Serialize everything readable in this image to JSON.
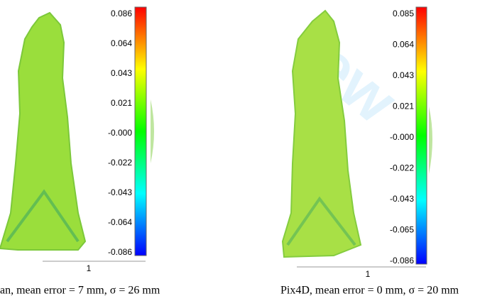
{
  "watermark": "iew",
  "panels": [
    {
      "colorbar_labels": [
        "0.086",
        "0.064",
        "0.043",
        "0.021",
        "-0.000",
        "-0.022",
        "-0.043",
        "-0.064",
        "-0.086"
      ],
      "scale_label": "1",
      "caption": "an, mean error = 7 mm, σ = 26 mm"
    },
    {
      "colorbar_labels": [
        "0.085",
        "0.064",
        "0.043",
        "0.021",
        "-0.000",
        "-0.022",
        "-0.043",
        "-0.065",
        "-0.086"
      ],
      "scale_label": "1",
      "caption": "Pix4D, mean error = 0 mm, σ = 20 mm"
    }
  ]
}
